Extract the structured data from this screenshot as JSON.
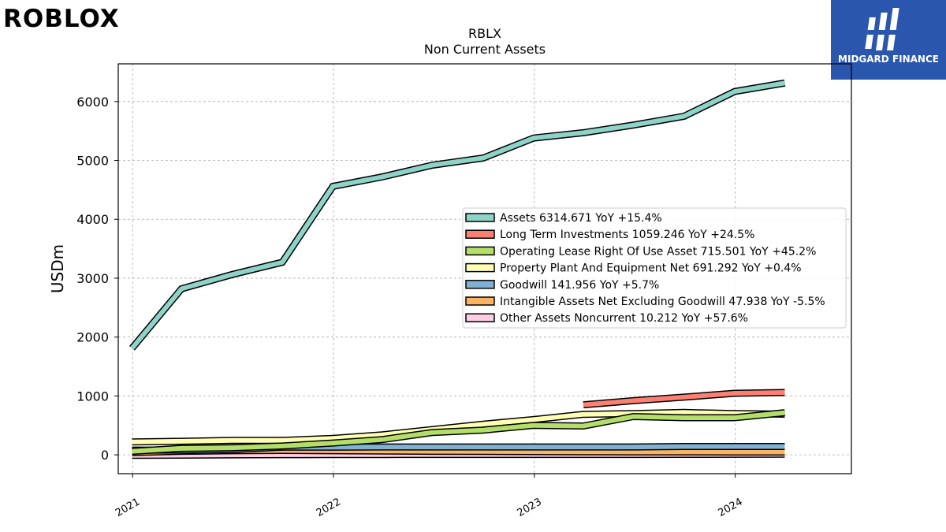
{
  "brand": {
    "left_logo_text": "ROBLOX",
    "right_logo_text": "MIDGARD FINANCE"
  },
  "chart_data": {
    "type": "line",
    "title": "RBLX",
    "subtitle": "Non Current  Assets",
    "ylabel": "USDm",
    "ylim": [
      -320,
      6640
    ],
    "y_ticks": [
      0,
      1000,
      2000,
      3000,
      4000,
      5000,
      6000
    ],
    "x_ticks": [
      "2021",
      "2022",
      "2023",
      "2024"
    ],
    "xlim": [
      "2020-12-06",
      "2024-07-30"
    ],
    "grid": true,
    "legend_position": "center-right",
    "series": [
      {
        "name": "Assets",
        "legend": "Assets  6314.671 YoY +15.4%",
        "color": "#8dd3c7",
        "x": [
          "2020-12-31",
          "2021-03-31",
          "2021-06-30",
          "2021-09-30",
          "2021-12-31",
          "2022-03-31",
          "2022-06-30",
          "2022-09-30",
          "2022-12-31",
          "2023-03-31",
          "2023-06-30",
          "2023-09-30",
          "2023-12-31",
          "2024-03-31"
        ],
        "y": [
          1810,
          2820,
          3060,
          3270,
          4560,
          4720,
          4920,
          5040,
          5380,
          5470,
          5600,
          5750,
          6170,
          6315
        ]
      },
      {
        "name": "Long Term Investments",
        "legend": "Long Term Investments  1059.246 YoY +24.5%",
        "color": "#fb8072",
        "x": [
          "2023-03-31",
          "2023-06-30",
          "2023-09-30",
          "2023-12-31",
          "2024-03-31"
        ],
        "y": [
          850,
          920,
          980,
          1045,
          1059
        ]
      },
      {
        "name": "Operating Lease Right Of Use Asset",
        "legend": "Operating Lease Right Of Use Asset  715.501 YoY +45.2%",
        "color": "#b3de69",
        "x": [
          "2020-12-31",
          "2021-03-31",
          "2021-06-30",
          "2021-09-30",
          "2021-12-31",
          "2022-03-31",
          "2022-06-30",
          "2022-09-30",
          "2022-12-31",
          "2023-03-31",
          "2023-06-30",
          "2023-09-30",
          "2023-12-31",
          "2024-03-31"
        ],
        "y": [
          60,
          110,
          120,
          150,
          200,
          260,
          380,
          420,
          500,
          490,
          650,
          630,
          630,
          716
        ]
      },
      {
        "name": "Property Plant And Equipment Net",
        "legend": "Property Plant And Equipment Net  691.292 YoY +0.4%",
        "color": "#ffffb3",
        "x": [
          "2020-12-31",
          "2021-03-31",
          "2021-06-30",
          "2021-09-30",
          "2021-12-31",
          "2022-03-31",
          "2022-06-30",
          "2022-09-30",
          "2022-12-31",
          "2023-03-31",
          "2023-06-30",
          "2023-09-30",
          "2023-12-31",
          "2024-03-31"
        ],
        "y": [
          220,
          230,
          245,
          245,
          280,
          340,
          430,
          520,
          600,
          688,
          700,
          720,
          700,
          691
        ]
      },
      {
        "name": "Goodwill",
        "legend": "Goodwill  141.956 YoY +5.7%",
        "color": "#80b1d3",
        "x": [
          "2020-12-31",
          "2021-03-31",
          "2021-06-30",
          "2021-09-30",
          "2021-12-31",
          "2022-03-31",
          "2022-06-30",
          "2022-09-30",
          "2022-12-31",
          "2023-03-31",
          "2023-06-30",
          "2023-09-30",
          "2023-12-31",
          "2024-03-31"
        ],
        "y": [
          80,
          80,
          90,
          130,
          130,
          134,
          134,
          134,
          134,
          134,
          134,
          142,
          142,
          142
        ]
      },
      {
        "name": "Intangible Assets Net Excluding Goodwill",
        "legend": "Intangible Assets Net Excluding Goodwill  47.938 YoY -5.5%",
        "color": "#fdb462",
        "x": [
          "2020-12-31",
          "2021-03-31",
          "2021-06-30",
          "2021-09-30",
          "2021-12-31",
          "2022-03-31",
          "2022-06-30",
          "2022-09-30",
          "2022-12-31",
          "2023-03-31",
          "2023-06-30",
          "2023-09-30",
          "2023-12-31",
          "2024-03-31"
        ],
        "y": [
          40,
          60,
          70,
          75,
          70,
          65,
          60,
          58,
          55,
          52,
          50,
          50,
          48,
          48
        ]
      },
      {
        "name": "Other Assets Noncurrent",
        "legend": "Other Assets Noncurrent  10.212 YoY +57.6%",
        "color": "#fccde5",
        "x": [
          "2020-12-31",
          "2021-03-31",
          "2021-06-30",
          "2021-09-30",
          "2021-12-31",
          "2022-03-31",
          "2022-06-30",
          "2022-09-30",
          "2022-12-31",
          "2023-03-31",
          "2023-06-30",
          "2023-09-30",
          "2023-12-31",
          "2024-03-31"
        ],
        "y": [
          -10,
          -5,
          0,
          3,
          5,
          5,
          6,
          6,
          6,
          6,
          7,
          8,
          9,
          10
        ]
      }
    ]
  }
}
